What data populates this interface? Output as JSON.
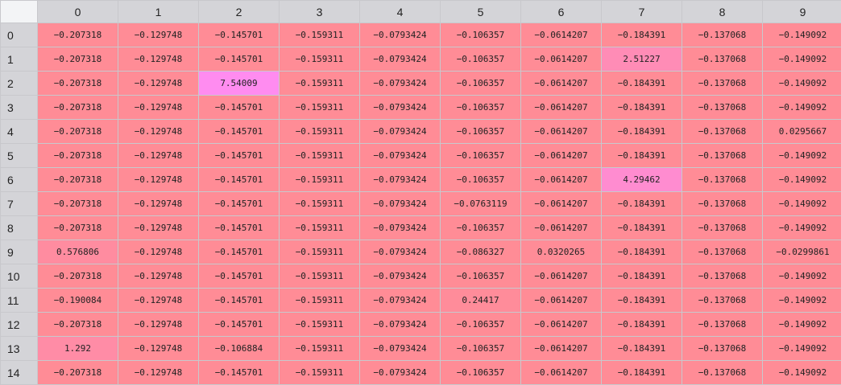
{
  "grid": {
    "columns": [
      "0",
      "1",
      "2",
      "3",
      "4",
      "5",
      "6",
      "7",
      "8",
      "9"
    ],
    "rows": [
      {
        "label": "0",
        "cells": [
          "−0.207318",
          "−0.129748",
          "−0.145701",
          "−0.159311",
          "−0.0793424",
          "−0.106357",
          "−0.0614207",
          "−0.184391",
          "−0.137068",
          "−0.149092"
        ],
        "colors": [
          "#ff8c96",
          "#ff8c96",
          "#ff8c96",
          "#ff8c96",
          "#ff8c96",
          "#ff8c96",
          "#ff8c96",
          "#ff8c96",
          "#ff8c96",
          "#ff8c96"
        ]
      },
      {
        "label": "1",
        "cells": [
          "−0.207318",
          "−0.129748",
          "−0.145701",
          "−0.159311",
          "−0.0793424",
          "−0.106357",
          "−0.0614207",
          "2.51227",
          "−0.137068",
          "−0.149092"
        ],
        "colors": [
          "#ff8c96",
          "#ff8c96",
          "#ff8c96",
          "#ff8c96",
          "#ff8c96",
          "#ff8c96",
          "#ff8c96",
          "#ff8cb6",
          "#ff8c96",
          "#ff8c96"
        ]
      },
      {
        "label": "2",
        "cells": [
          "−0.207318",
          "−0.129748",
          "7.54009",
          "−0.159311",
          "−0.0793424",
          "−0.106357",
          "−0.0614207",
          "−0.184391",
          "−0.137068",
          "−0.149092"
        ],
        "colors": [
          "#ff8c96",
          "#ff8c96",
          "#ff8cf0",
          "#ff8c96",
          "#ff8c96",
          "#ff8c96",
          "#ff8c96",
          "#ff8c96",
          "#ff8c96",
          "#ff8c96"
        ]
      },
      {
        "label": "3",
        "cells": [
          "−0.207318",
          "−0.129748",
          "−0.145701",
          "−0.159311",
          "−0.0793424",
          "−0.106357",
          "−0.0614207",
          "−0.184391",
          "−0.137068",
          "−0.149092"
        ],
        "colors": [
          "#ff8c96",
          "#ff8c96",
          "#ff8c96",
          "#ff8c96",
          "#ff8c96",
          "#ff8c96",
          "#ff8c96",
          "#ff8c96",
          "#ff8c96",
          "#ff8c96"
        ]
      },
      {
        "label": "4",
        "cells": [
          "−0.207318",
          "−0.129748",
          "−0.145701",
          "−0.159311",
          "−0.0793424",
          "−0.106357",
          "−0.0614207",
          "−0.184391",
          "−0.137068",
          "0.0295667"
        ],
        "colors": [
          "#ff8c96",
          "#ff8c96",
          "#ff8c96",
          "#ff8c96",
          "#ff8c96",
          "#ff8c96",
          "#ff8c96",
          "#ff8c96",
          "#ff8c96",
          "#ff8c97"
        ]
      },
      {
        "label": "5",
        "cells": [
          "−0.207318",
          "−0.129748",
          "−0.145701",
          "−0.159311",
          "−0.0793424",
          "−0.106357",
          "−0.0614207",
          "−0.184391",
          "−0.137068",
          "−0.149092"
        ],
        "colors": [
          "#ff8c96",
          "#ff8c96",
          "#ff8c96",
          "#ff8c96",
          "#ff8c96",
          "#ff8c96",
          "#ff8c96",
          "#ff8c96",
          "#ff8c96",
          "#ff8c96"
        ]
      },
      {
        "label": "6",
        "cells": [
          "−0.207318",
          "−0.129748",
          "−0.145701",
          "−0.159311",
          "−0.0793424",
          "−0.106357",
          "−0.0614207",
          "4.29462",
          "−0.137068",
          "−0.149092"
        ],
        "colors": [
          "#ff8c96",
          "#ff8c96",
          "#ff8c96",
          "#ff8c96",
          "#ff8c96",
          "#ff8c96",
          "#ff8c96",
          "#ff8cd0",
          "#ff8c96",
          "#ff8c96"
        ]
      },
      {
        "label": "7",
        "cells": [
          "−0.207318",
          "−0.129748",
          "−0.145701",
          "−0.159311",
          "−0.0793424",
          "−0.0763119",
          "−0.0614207",
          "−0.184391",
          "−0.137068",
          "−0.149092"
        ],
        "colors": [
          "#ff8c96",
          "#ff8c96",
          "#ff8c96",
          "#ff8c96",
          "#ff8c96",
          "#ff8c96",
          "#ff8c96",
          "#ff8c96",
          "#ff8c96",
          "#ff8c96"
        ]
      },
      {
        "label": "8",
        "cells": [
          "−0.207318",
          "−0.129748",
          "−0.145701",
          "−0.159311",
          "−0.0793424",
          "−0.106357",
          "−0.0614207",
          "−0.184391",
          "−0.137068",
          "−0.149092"
        ],
        "colors": [
          "#ff8c96",
          "#ff8c96",
          "#ff8c96",
          "#ff8c96",
          "#ff8c96",
          "#ff8c96",
          "#ff8c96",
          "#ff8c96",
          "#ff8c96",
          "#ff8c96"
        ]
      },
      {
        "label": "9",
        "cells": [
          "0.576806",
          "−0.129748",
          "−0.145701",
          "−0.159311",
          "−0.0793424",
          "−0.086327",
          "0.0320265",
          "−0.184391",
          "−0.137068",
          "−0.0299861"
        ],
        "colors": [
          "#ff8ca0",
          "#ff8c96",
          "#ff8c96",
          "#ff8c96",
          "#ff8c96",
          "#ff8c96",
          "#ff8c97",
          "#ff8c96",
          "#ff8c96",
          "#ff8c96"
        ]
      },
      {
        "label": "10",
        "cells": [
          "−0.207318",
          "−0.129748",
          "−0.145701",
          "−0.159311",
          "−0.0793424",
          "−0.106357",
          "−0.0614207",
          "−0.184391",
          "−0.137068",
          "−0.149092"
        ],
        "colors": [
          "#ff8c96",
          "#ff8c96",
          "#ff8c96",
          "#ff8c96",
          "#ff8c96",
          "#ff8c96",
          "#ff8c96",
          "#ff8c96",
          "#ff8c96",
          "#ff8c96"
        ]
      },
      {
        "label": "11",
        "cells": [
          "−0.190084",
          "−0.129748",
          "−0.145701",
          "−0.159311",
          "−0.0793424",
          "0.24417",
          "−0.0614207",
          "−0.184391",
          "−0.137068",
          "−0.149092"
        ],
        "colors": [
          "#ff8c96",
          "#ff8c96",
          "#ff8c96",
          "#ff8c96",
          "#ff8c96",
          "#ff8c9a",
          "#ff8c96",
          "#ff8c96",
          "#ff8c96",
          "#ff8c96"
        ]
      },
      {
        "label": "12",
        "cells": [
          "−0.207318",
          "−0.129748",
          "−0.145701",
          "−0.159311",
          "−0.0793424",
          "−0.106357",
          "−0.0614207",
          "−0.184391",
          "−0.137068",
          "−0.149092"
        ],
        "colors": [
          "#ff8c96",
          "#ff8c96",
          "#ff8c96",
          "#ff8c96",
          "#ff8c96",
          "#ff8c96",
          "#ff8c96",
          "#ff8c96",
          "#ff8c96",
          "#ff8c96"
        ]
      },
      {
        "label": "13",
        "cells": [
          "1.292",
          "−0.129748",
          "−0.106884",
          "−0.159311",
          "−0.0793424",
          "−0.106357",
          "−0.0614207",
          "−0.184391",
          "−0.137068",
          "−0.149092"
        ],
        "colors": [
          "#ff8ca6",
          "#ff8c96",
          "#ff8c96",
          "#ff8c96",
          "#ff8c96",
          "#ff8c96",
          "#ff8c96",
          "#ff8c96",
          "#ff8c96",
          "#ff8c96"
        ]
      },
      {
        "label": "14",
        "cells": [
          "−0.207318",
          "−0.129748",
          "−0.145701",
          "−0.159311",
          "−0.0793424",
          "−0.106357",
          "−0.0614207",
          "−0.184391",
          "−0.137068",
          "−0.149092"
        ],
        "colors": [
          "#ff8c96",
          "#ff8c96",
          "#ff8c96",
          "#ff8c96",
          "#ff8c96",
          "#ff8c96",
          "#ff8c96",
          "#ff8c96",
          "#ff8c96",
          "#ff8c96"
        ]
      }
    ]
  }
}
